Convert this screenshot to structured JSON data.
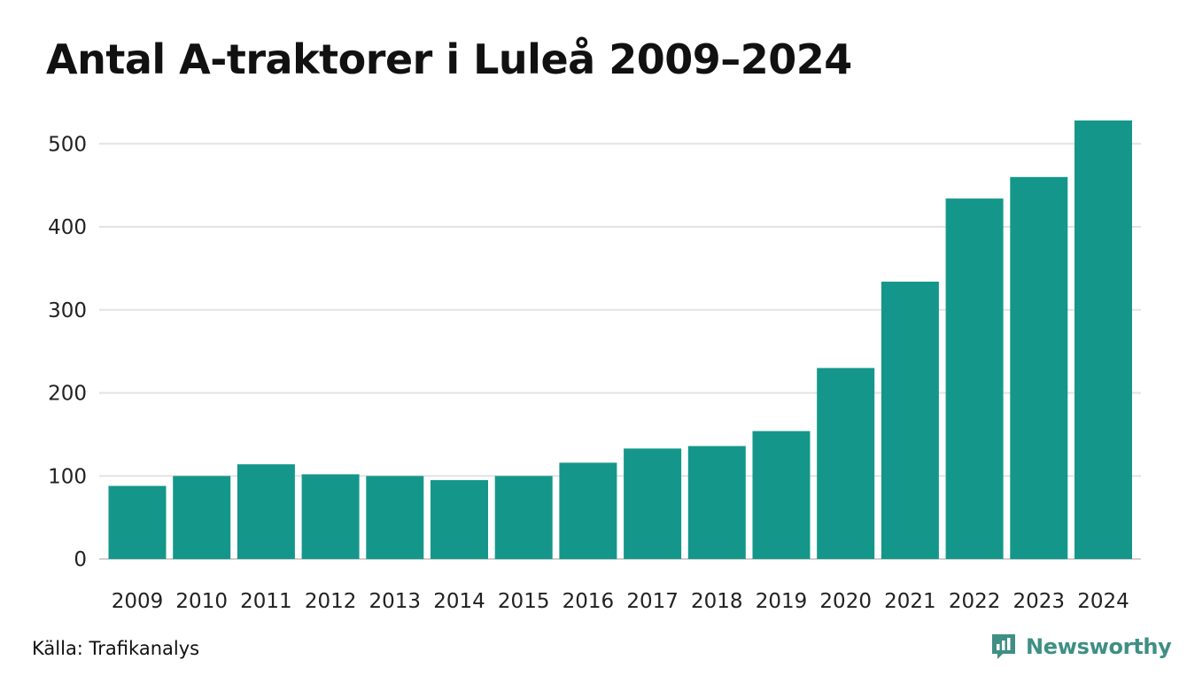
{
  "chart_data": {
    "type": "bar",
    "title": "Antal A-traktorer i Luleå 2009–2024",
    "xlabel": "",
    "ylabel": "",
    "categories": [
      "2009",
      "2010",
      "2011",
      "2012",
      "2013",
      "2014",
      "2015",
      "2016",
      "2017",
      "2018",
      "2019",
      "2020",
      "2021",
      "2022",
      "2023",
      "2024"
    ],
    "values": [
      88,
      100,
      114,
      102,
      100,
      95,
      100,
      116,
      133,
      136,
      154,
      230,
      334,
      434,
      460,
      528
    ],
    "ylim": [
      0,
      540
    ],
    "yticks": [
      0,
      100,
      200,
      300,
      400,
      500
    ],
    "grid": true,
    "bar_color": "#14978a",
    "grid_color": "#e3e3e3"
  },
  "footer": {
    "source": "Källa: Trafikanalys",
    "brand": "Newsworthy",
    "brand_color": "#3f8f84",
    "brand_icon": "newsworthy-logo-icon"
  }
}
